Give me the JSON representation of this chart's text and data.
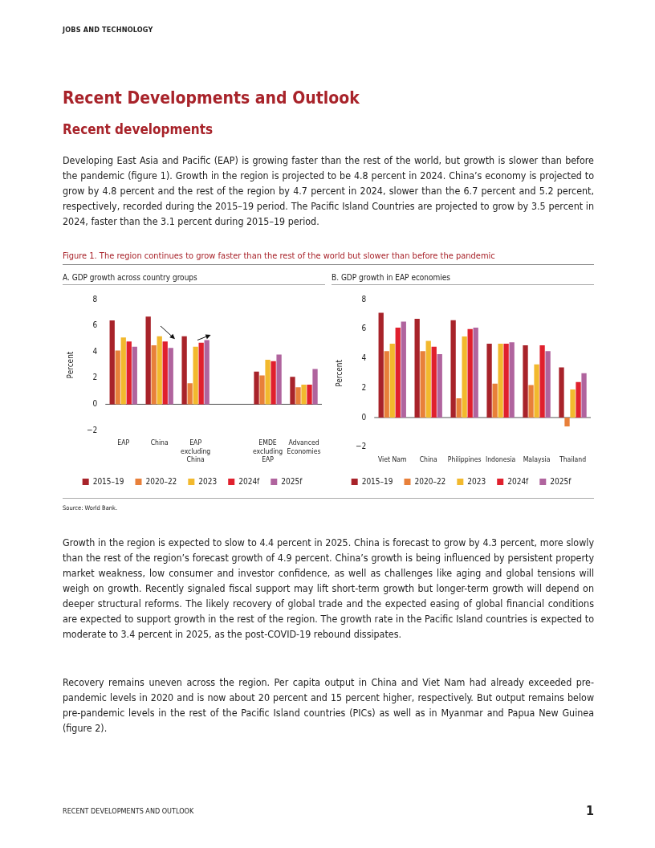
{
  "chart_data": [
    {
      "type": "bar",
      "title": "A. GDP growth across country groups",
      "ylabel": "Percent",
      "annotations": [
        "JOBS AND TECHNOLOGY",
        "Recent Developments and Outlook",
        "Recent developments",
        "Developing East Asia and Pacific (EAP) is growing faster than the rest of the world, but growth is slower than before the pandemic (figure 1). Growth in the region is projected to be 4.8 percent in 2024. China’s economy is projected to grow by 4.8 percent and the rest of the region by 4.7 percent in 2024, slower than the 6.7 percent and 5.2 percent, respectively, recorded during the 2015–19 period. The Pacific Island Countries are projected to grow by 3.5 percent in 2024, faster than the 3.1 percent during 2015–19 period.",
        "Figure 1. The region continues to grow faster than the rest of the world but slower than before the pandemic"
      ],
      "categories": [
        "EAP",
        "China",
        "EAP excluding China",
        null,
        "EMDE excluding EAP",
        "Advanced Economies"
      ],
      "series": [
        {
          "name": "2015–19",
          "color": "#a8232a",
          "values": [
            6.4,
            6.7,
            5.2,
            null,
            2.5,
            2.1
          ]
        },
        {
          "name": "2020–22",
          "color": "#e8803a",
          "values": [
            4.1,
            4.5,
            1.6,
            null,
            2.2,
            1.3
          ]
        },
        {
          "name": "2023",
          "color": "#f2b92e",
          "values": [
            5.1,
            5.2,
            4.4,
            null,
            3.4,
            1.5
          ]
        },
        {
          "name": "2024f",
          "color": "#e0202d",
          "values": [
            4.8,
            4.8,
            4.7,
            null,
            3.3,
            1.5
          ]
        },
        {
          "name": "2025f",
          "color": "#b0649e",
          "values": [
            4.4,
            4.3,
            4.9,
            null,
            3.8,
            2.7
          ]
        }
      ],
      "ylim": [
        -2,
        8
      ],
      "yticks": [
        {
          "value": -2,
          "label": "−2"
        },
        0,
        2,
        4,
        6,
        8
      ],
      "legend": "bottom"
    },
    {
      "type": "bar",
      "title": "B. GDP growth in EAP economies",
      "ylabel": "Percent",
      "annotations": [
        "Source: World Bank.",
        "Growth in the region is expected to slow to 4.4 percent in 2025. China is forecast to grow by 4.3 percent, more slowly than the rest of the region’s forecast growth of 4.9 percent. China’s growth is being influenced by persistent property market weakness, low consumer and investor confidence, as well as challenges like aging and global tensions will weigh on growth. Recently signaled fiscal support may lift short-term growth but longer-term growth will depend on deeper structural reforms. The likely recovery of global trade and the expected easing of global financial conditions are expected to support growth in the rest of the region. The growth rate in the Pacific Island countries is expected to moderate to 3.4 percent in 2025, as the post-COVID-19 rebound dissipates.",
        "Recovery remains uneven across the region. Per capita output in China and Viet Nam had already exceeded pre-pandemic levels in 2020 and is now about 20 percent and 15 percent higher, respectively. But output remains below pre-pandemic levels in the rest of the Pacific Island countries (PICs) as well as in Myanmar and Papua New Guinea (figure 2).",
        "RECENT DEVELOPMENTS AND OUTLOOK",
        "1"
      ],
      "categories": [
        "Viet Nam",
        "China",
        "Philippines",
        "Indonesia",
        "Malaysia",
        "Thailand"
      ],
      "series": [
        {
          "name": "2015–19",
          "color": "#a8232a",
          "values": [
            7.1,
            6.7,
            6.6,
            5.0,
            4.9,
            3.4
          ]
        },
        {
          "name": "2020–22",
          "color": "#e8803a",
          "values": [
            4.5,
            4.5,
            1.3,
            2.3,
            2.2,
            -0.6
          ]
        },
        {
          "name": "2023",
          "color": "#f2b92e",
          "values": [
            5.0,
            5.2,
            5.5,
            5.0,
            3.6,
            1.9
          ]
        },
        {
          "name": "2024f",
          "color": "#e0202d",
          "values": [
            6.1,
            4.8,
            6.0,
            5.0,
            4.9,
            2.4
          ]
        },
        {
          "name": "2025f",
          "color": "#b0649e",
          "values": [
            6.5,
            4.3,
            6.1,
            5.1,
            4.5,
            3.0
          ]
        }
      ],
      "ylim": [
        -2,
        8
      ],
      "yticks": [
        {
          "value": -2,
          "label": "−2"
        },
        0,
        2,
        4,
        6,
        8
      ],
      "legend": "bottom"
    }
  ]
}
